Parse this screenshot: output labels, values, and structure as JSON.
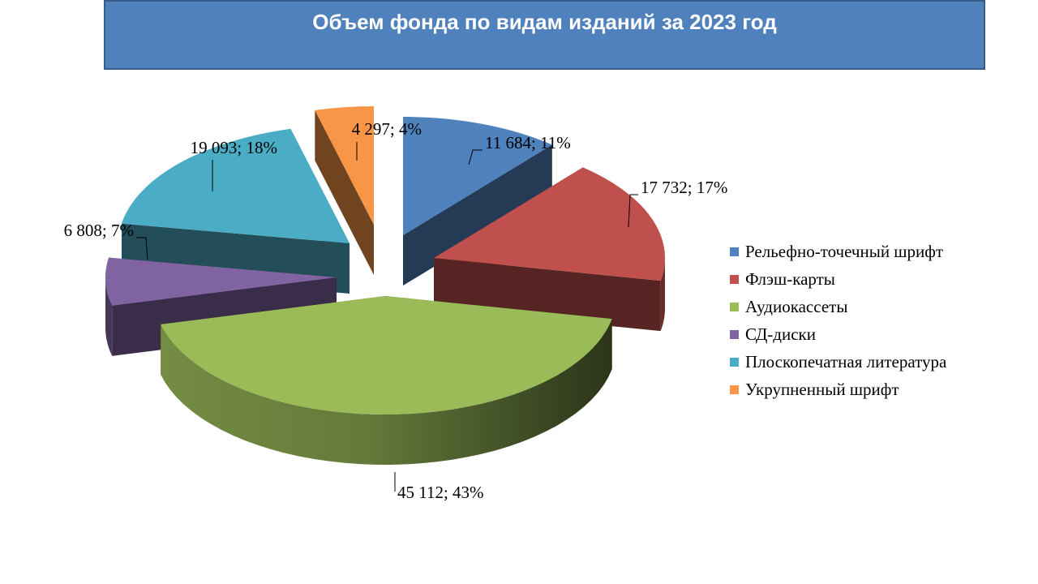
{
  "chart_data": {
    "type": "pie",
    "title": "Объем фонда по видам изданий за 2023 год",
    "unit_separator": "; ",
    "legend_position": "right",
    "slices": [
      {
        "label": "Рельефно-точечный шрифт",
        "value": 11684,
        "value_label": "11 684",
        "percent_label": "11%",
        "color": "#4f81bd"
      },
      {
        "label": "Флэш-карты",
        "value": 17732,
        "value_label": "17 732",
        "percent_label": "17%",
        "color": "#c0504d"
      },
      {
        "label": "Аудиокассеты",
        "value": 45112,
        "value_label": "45 112",
        "percent_label": "43%",
        "color": "#9bbb59"
      },
      {
        "label": "СД-диски",
        "value": 6808,
        "value_label": "6 808",
        "percent_label": "7%",
        "color": "#8064a2"
      },
      {
        "label": "Плоскопечатная литература",
        "value": 19093,
        "value_label": "19 093",
        "percent_label": "18%",
        "color": "#4bacc6"
      },
      {
        "label": "Укрупненный шрифт",
        "value": 4297,
        "value_label": "4 297",
        "percent_label": "4%",
        "color": "#f79646"
      }
    ]
  }
}
